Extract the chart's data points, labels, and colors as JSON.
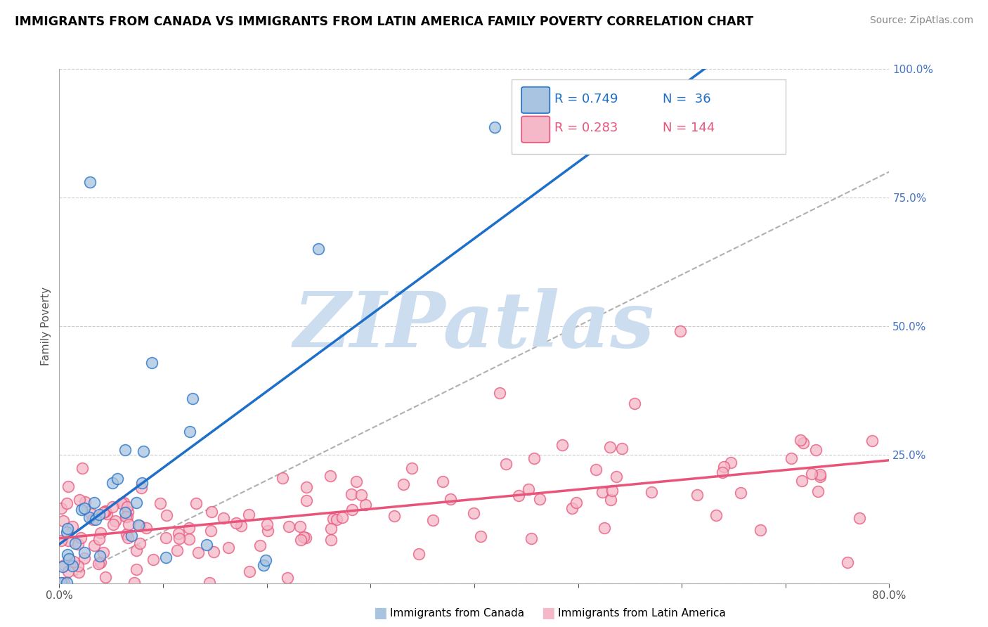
{
  "title": "IMMIGRANTS FROM CANADA VS IMMIGRANTS FROM LATIN AMERICA FAMILY POVERTY CORRELATION CHART",
  "source": "Source: ZipAtlas.com",
  "ylabel": "Family Poverty",
  "xlim": [
    0,
    0.8
  ],
  "ylim": [
    0,
    1.0
  ],
  "canada_R": 0.749,
  "canada_N": 36,
  "latin_R": 0.283,
  "latin_N": 144,
  "canada_color": "#a8c4e0",
  "canada_line_color": "#1e6fc8",
  "latin_color": "#f4b8c8",
  "latin_line_color": "#e8547a",
  "diagonal_color": "#b0b0b0",
  "watermark": "ZIPatlas",
  "watermark_color": "#ccddf0"
}
